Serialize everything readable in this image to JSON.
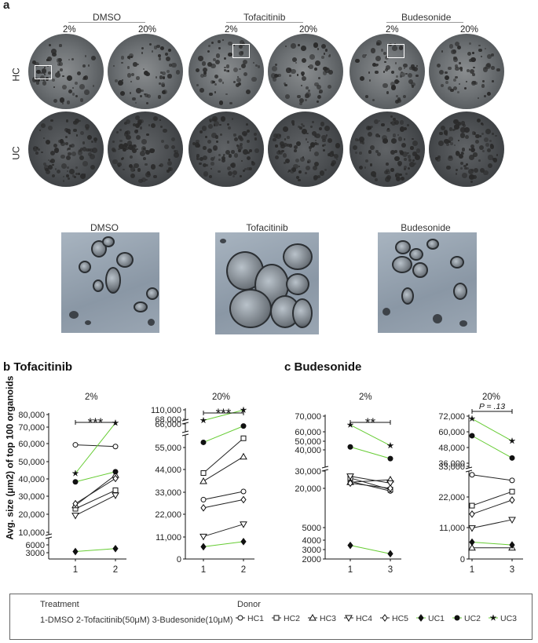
{
  "panel_a": {
    "letter": "a",
    "groups": [
      {
        "name": "DMSO",
        "pcts": [
          "2%",
          "20%"
        ]
      },
      {
        "name": "Tofacitinib",
        "pcts": [
          "2%",
          "20%"
        ]
      },
      {
        "name": "Budesonide",
        "pcts": [
          "2%",
          "20%"
        ]
      }
    ],
    "rows": [
      "HC",
      "UC"
    ],
    "zoom_labels": [
      "DMSO",
      "Tofacitinib",
      "Budesonide"
    ]
  },
  "panel_b": {
    "title": "b Tofacitinib"
  },
  "panel_c": {
    "title": "c Budesonide"
  },
  "ylabel": "Avg. size (μm2) of top 100 organoids",
  "legend": {
    "treatment_title": "Treatment",
    "treatment_text": "1-DMSO  2-Tofacitinib(50μM)  3-Budesonide(10μM)",
    "donor_title": "Donor",
    "donors": [
      {
        "name": "HC1",
        "marker": "circle-open"
      },
      {
        "name": "HC2",
        "marker": "square-open"
      },
      {
        "name": "HC3",
        "marker": "triangle-up-open"
      },
      {
        "name": "HC4",
        "marker": "triangle-down-open"
      },
      {
        "name": "HC5",
        "marker": "diamond-open"
      },
      {
        "name": "UC1",
        "marker": "diamond-filled"
      },
      {
        "name": "UC2",
        "marker": "circle-filled"
      },
      {
        "name": "UC3",
        "marker": "star-filled"
      }
    ]
  },
  "colors": {
    "hc_line": "#222222",
    "uc_line": "#66cc33"
  },
  "chart_data": [
    {
      "type": "line",
      "title": "2%",
      "categories": [
        "1",
        "2"
      ],
      "yticks": [
        "3000",
        "6000",
        "10,000",
        "20,000",
        "30,000",
        "40,000",
        "50,000",
        "60,000",
        "70,000",
        "80,000"
      ],
      "significance": "***",
      "series": [
        {
          "name": "HC1",
          "values": [
            62000,
            61000
          ]
        },
        {
          "name": "HC2",
          "values": [
            24000,
            35000
          ]
        },
        {
          "name": "HC3",
          "values": [
            26000,
            44000
          ]
        },
        {
          "name": "HC4",
          "values": [
            20000,
            32000
          ]
        },
        {
          "name": "HC5",
          "values": [
            27000,
            42000
          ]
        },
        {
          "name": "UC1",
          "values": [
            3400,
            4400
          ]
        },
        {
          "name": "UC2",
          "values": [
            40000,
            46000
          ]
        },
        {
          "name": "UC3",
          "values": [
            45000,
            75000
          ]
        }
      ]
    },
    {
      "type": "line",
      "title": "20%",
      "categories": [
        "1",
        "2"
      ],
      "yticks": [
        "0",
        "11,000",
        "22,000",
        "33,000",
        "44,000",
        "55,000",
        "66,000",
        "68,000",
        "110,000"
      ],
      "significance": "***",
      "series": [
        {
          "name": "HC1",
          "values": [
            29000,
            33000
          ]
        },
        {
          "name": "HC2",
          "values": [
            42000,
            59000
          ]
        },
        {
          "name": "HC3",
          "values": [
            38000,
            50000
          ]
        },
        {
          "name": "HC4",
          "values": [
            11000,
            17000
          ]
        },
        {
          "name": "HC5",
          "values": [
            25000,
            29000
          ]
        },
        {
          "name": "UC1",
          "values": [
            6000,
            8500
          ]
        },
        {
          "name": "UC2",
          "values": [
            57000,
            65000
          ]
        },
        {
          "name": "UC3",
          "values": [
            67500,
            109000
          ]
        }
      ]
    },
    {
      "type": "line",
      "title": "2%",
      "categories": [
        "1",
        "3"
      ],
      "yticks": [
        "2000",
        "3000",
        "4000",
        "5000",
        "20,000",
        "30,000",
        "40,000",
        "50,000",
        "60,000",
        "70,000"
      ],
      "significance": "**",
      "series": [
        {
          "name": "HC1",
          "values": [
            24000,
            19000
          ]
        },
        {
          "name": "HC2",
          "values": [
            26000,
            19500
          ]
        },
        {
          "name": "HC3",
          "values": [
            23500,
            25000
          ]
        },
        {
          "name": "HC4",
          "values": [
            27000,
            23000
          ]
        },
        {
          "name": "HC5",
          "values": [
            23000,
            20000
          ]
        },
        {
          "name": "UC1",
          "values": [
            3300,
            2500
          ]
        },
        {
          "name": "UC2",
          "values": [
            45000,
            36000
          ]
        },
        {
          "name": "UC3",
          "values": [
            62000,
            46000
          ]
        }
      ]
    },
    {
      "type": "line",
      "title": "20%",
      "categories": [
        "1",
        "3"
      ],
      "yticks": [
        "0",
        "11,000",
        "22,000",
        "33,000",
        "36,000",
        "48,000",
        "60,000",
        "72,000"
      ],
      "significance": "P = .13",
      "series": [
        {
          "name": "HC1",
          "values": [
            30000,
            28000
          ]
        },
        {
          "name": "HC2",
          "values": [
            19000,
            24000
          ]
        },
        {
          "name": "HC3",
          "values": [
            4000,
            4000
          ]
        },
        {
          "name": "HC4",
          "values": [
            11000,
            14000
          ]
        },
        {
          "name": "HC5",
          "values": [
            16000,
            21000
          ]
        },
        {
          "name": "UC1",
          "values": [
            6000,
            5000
          ]
        },
        {
          "name": "UC2",
          "values": [
            57000,
            40000
          ]
        },
        {
          "name": "UC3",
          "values": [
            70000,
            53000
          ]
        }
      ]
    }
  ]
}
